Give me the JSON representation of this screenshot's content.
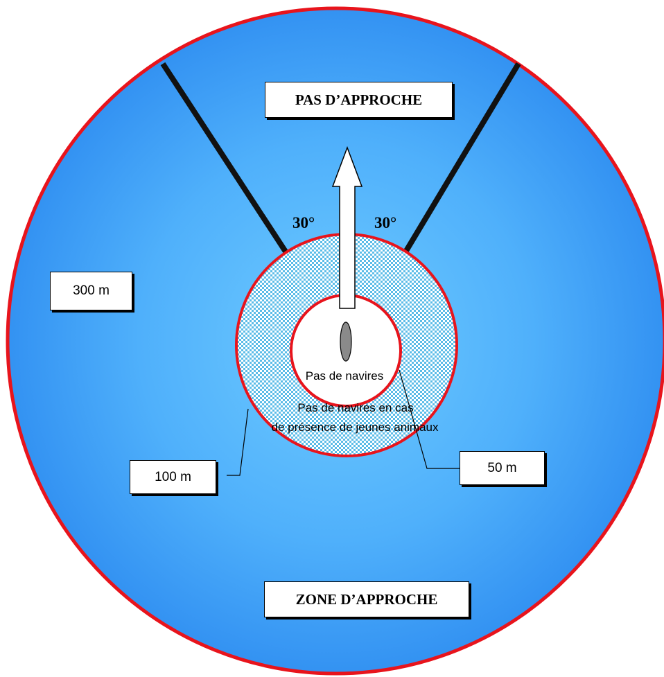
{
  "labels": {
    "pas_approche": "PAS D’APPROCHE",
    "zone_approche": "ZONE D’APPROCHE",
    "dist_300": "300 m",
    "dist_100": "100 m",
    "dist_50": "50 m",
    "angle_left": "30°",
    "angle_right": "30°",
    "pas_de_navires": "Pas de navires",
    "jeunes_line1": "Pas de navires en cas",
    "jeunes_line2": "de présence de jeunes animaux"
  },
  "colors": {
    "outer_ring": "#e8141c",
    "water_center": "#66c6ff",
    "water_edge": "#3394f2",
    "sector_lines": "#111111",
    "animal": "#8a8a8a"
  }
}
